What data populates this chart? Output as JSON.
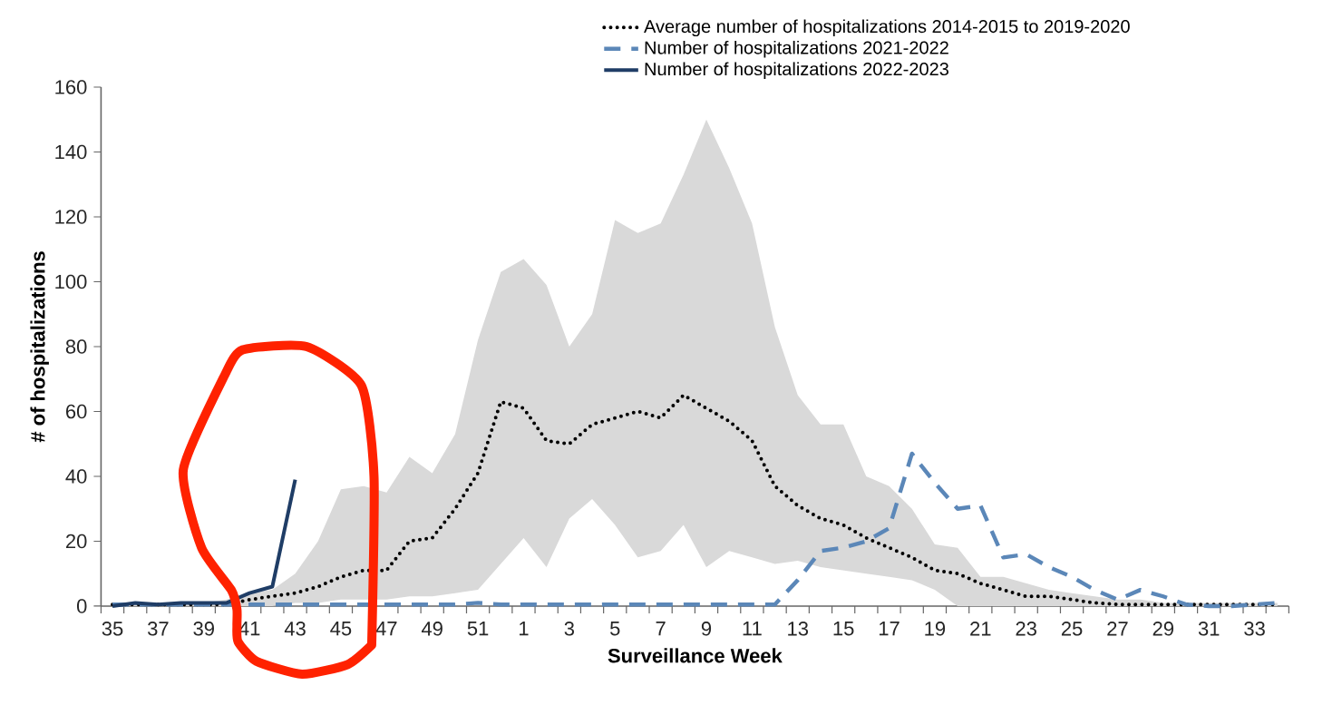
{
  "chart_data": {
    "type": "line",
    "xlabel": "Surveillance Week",
    "ylabel": "# of hospitalizations",
    "categories": [
      "35",
      null,
      "37",
      null,
      "39",
      null,
      "41",
      null,
      "43",
      null,
      "45",
      null,
      "47",
      null,
      "49",
      null,
      "51",
      null,
      "1",
      null,
      "3",
      null,
      "5",
      null,
      "7",
      null,
      "9",
      null,
      "11",
      null,
      "13",
      null,
      "15",
      null,
      "17",
      null,
      "19",
      null,
      "21",
      null,
      "23",
      null,
      "25",
      null,
      "27",
      null,
      "29",
      null,
      "31",
      null,
      "33",
      null
    ],
    "ylim": [
      0,
      160
    ],
    "yticks": [
      0,
      20,
      40,
      60,
      80,
      100,
      120,
      140,
      160
    ],
    "grid": false,
    "legend": "top right",
    "series": [
      {
        "name": "Average number of hospitalizations 2014-2015 to 2019-2020",
        "color": "#000000",
        "line_style": "dotted",
        "values": [
          0.5,
          0.5,
          0.5,
          0.5,
          0.5,
          0.5,
          2,
          3,
          4,
          6,
          9,
          11,
          11,
          20,
          21,
          30,
          41,
          63,
          61,
          51,
          50,
          56,
          58,
          60,
          58,
          65,
          61,
          57,
          51,
          37,
          31,
          27,
          25,
          21,
          18,
          15,
          11,
          10,
          7,
          5,
          3,
          3,
          2,
          1,
          0.5,
          0.5,
          0.5,
          0.5,
          0.5,
          0.5,
          0.5,
          0.5
        ],
        "lower": [
          0,
          0,
          0,
          0,
          0,
          0,
          0,
          0,
          1,
          1,
          2,
          2,
          2,
          3,
          3,
          4,
          5,
          13,
          21,
          12,
          27,
          33,
          25,
          15,
          17,
          25,
          12,
          17,
          15,
          13,
          14,
          12,
          11,
          10,
          9,
          8,
          5,
          0,
          0,
          0,
          0,
          0,
          0,
          0,
          0,
          0,
          0,
          0,
          0,
          0,
          0,
          0
        ],
        "upper": [
          1,
          1,
          1,
          1,
          1,
          2,
          4,
          5,
          10,
          20,
          36,
          37,
          35,
          46,
          41,
          53,
          82,
          103,
          107,
          99,
          80,
          90,
          119,
          115,
          118,
          133,
          150,
          135,
          118,
          86,
          65,
          56,
          56,
          40,
          37,
          30,
          19,
          18,
          9,
          9,
          7,
          5,
          4,
          3,
          2,
          2,
          1,
          1,
          1,
          1,
          1,
          1
        ]
      },
      {
        "name": "Number of hospitalizations 2021-2022",
        "color": "#5b87b8",
        "line_style": "dashed",
        "values": [
          0.5,
          0.5,
          0.5,
          0.5,
          0.5,
          0.5,
          0.5,
          0.5,
          0.5,
          0.5,
          0.5,
          0.5,
          0.5,
          0.5,
          0.5,
          0.5,
          1,
          0.5,
          0.5,
          0.5,
          0.5,
          0.5,
          0.5,
          0.5,
          0.5,
          0.5,
          0.5,
          0.5,
          0.5,
          0.5,
          8,
          17,
          18,
          20,
          24,
          47,
          38,
          30,
          31,
          15,
          16,
          12,
          9,
          5,
          2,
          5,
          3,
          0.5,
          0,
          0,
          0.5,
          1
        ]
      },
      {
        "name": "Number of hospitalizations 2022-2023",
        "color": "#1f3d66",
        "line_style": "solid",
        "values": [
          0,
          1,
          0.5,
          1,
          1,
          1,
          4,
          6,
          39,
          null,
          null,
          null,
          null,
          null,
          null,
          null,
          null,
          null,
          null,
          null,
          null,
          null,
          null,
          null,
          null,
          null,
          null,
          null,
          null,
          null,
          null,
          null,
          null,
          null,
          null,
          null,
          null,
          null,
          null,
          null,
          null,
          null,
          null,
          null,
          null,
          null,
          null,
          null,
          null,
          null,
          null,
          null
        ]
      }
    ]
  }
}
